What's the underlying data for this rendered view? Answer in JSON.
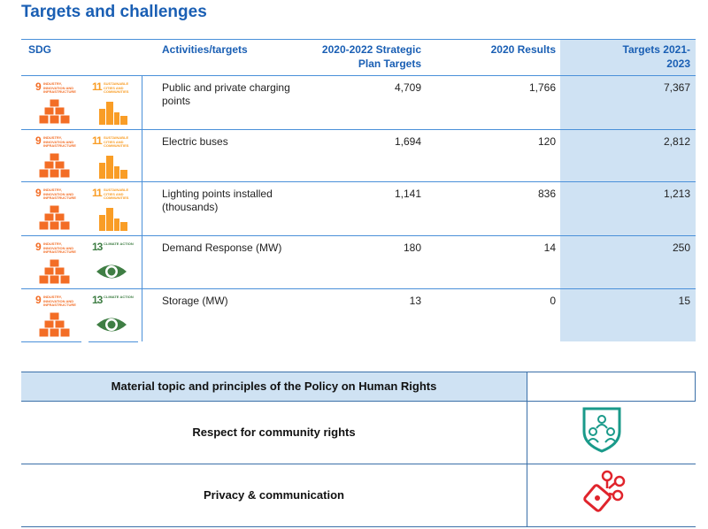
{
  "title": "Targets and challenges",
  "table": {
    "headers": [
      "SDG",
      "Activities/targets",
      "2020-2022 Strategic Plan Targets",
      "2020 Results",
      "Targets 2021-2023"
    ],
    "rows": [
      {
        "sdg": [
          {
            "number": "9",
            "label": "INDUSTRY, INNOVATION AND INFRASTRUCTURE"
          },
          {
            "number": "11",
            "label": "SUSTAINABLE CITIES AND COMMUNITIES"
          }
        ],
        "activity": "Public and private charging points",
        "plan": "4,709",
        "results": "1,766",
        "targets": "7,367"
      },
      {
        "sdg": [
          {
            "number": "9",
            "label": "INDUSTRY, INNOVATION AND INFRASTRUCTURE"
          },
          {
            "number": "11",
            "label": "SUSTAINABLE CITIES AND COMMUNITIES"
          }
        ],
        "activity": "Electric buses",
        "plan": "1,694",
        "results": "120",
        "targets": "2,812"
      },
      {
        "sdg": [
          {
            "number": "9",
            "label": "INDUSTRY, INNOVATION AND INFRASTRUCTURE"
          },
          {
            "number": "11",
            "label": "SUSTAINABLE CITIES AND COMMUNITIES"
          }
        ],
        "activity": "Lighting points installed (thousands)",
        "plan": "1,141",
        "results": "836",
        "targets": "1,213"
      },
      {
        "sdg": [
          {
            "number": "9",
            "label": "INDUSTRY, INNOVATION AND INFRASTRUCTURE"
          },
          {
            "number": "13",
            "label": "CLIMATE ACTION"
          }
        ],
        "activity": "Demand Response (MW)",
        "plan": "180",
        "results": "14",
        "targets": "250"
      },
      {
        "sdg": [
          {
            "number": "9",
            "label": "INDUSTRY, INNOVATION AND INFRASTRUCTURE"
          },
          {
            "number": "13",
            "label": "CLIMATE ACTION"
          }
        ],
        "activity": "Storage (MW)",
        "plan": "13",
        "results": "0",
        "targets": "15"
      }
    ]
  },
  "topics": {
    "header": "Material topic and principles of the Policy on Human Rights",
    "rows": [
      "Respect for community rights",
      "Privacy & communication"
    ]
  }
}
